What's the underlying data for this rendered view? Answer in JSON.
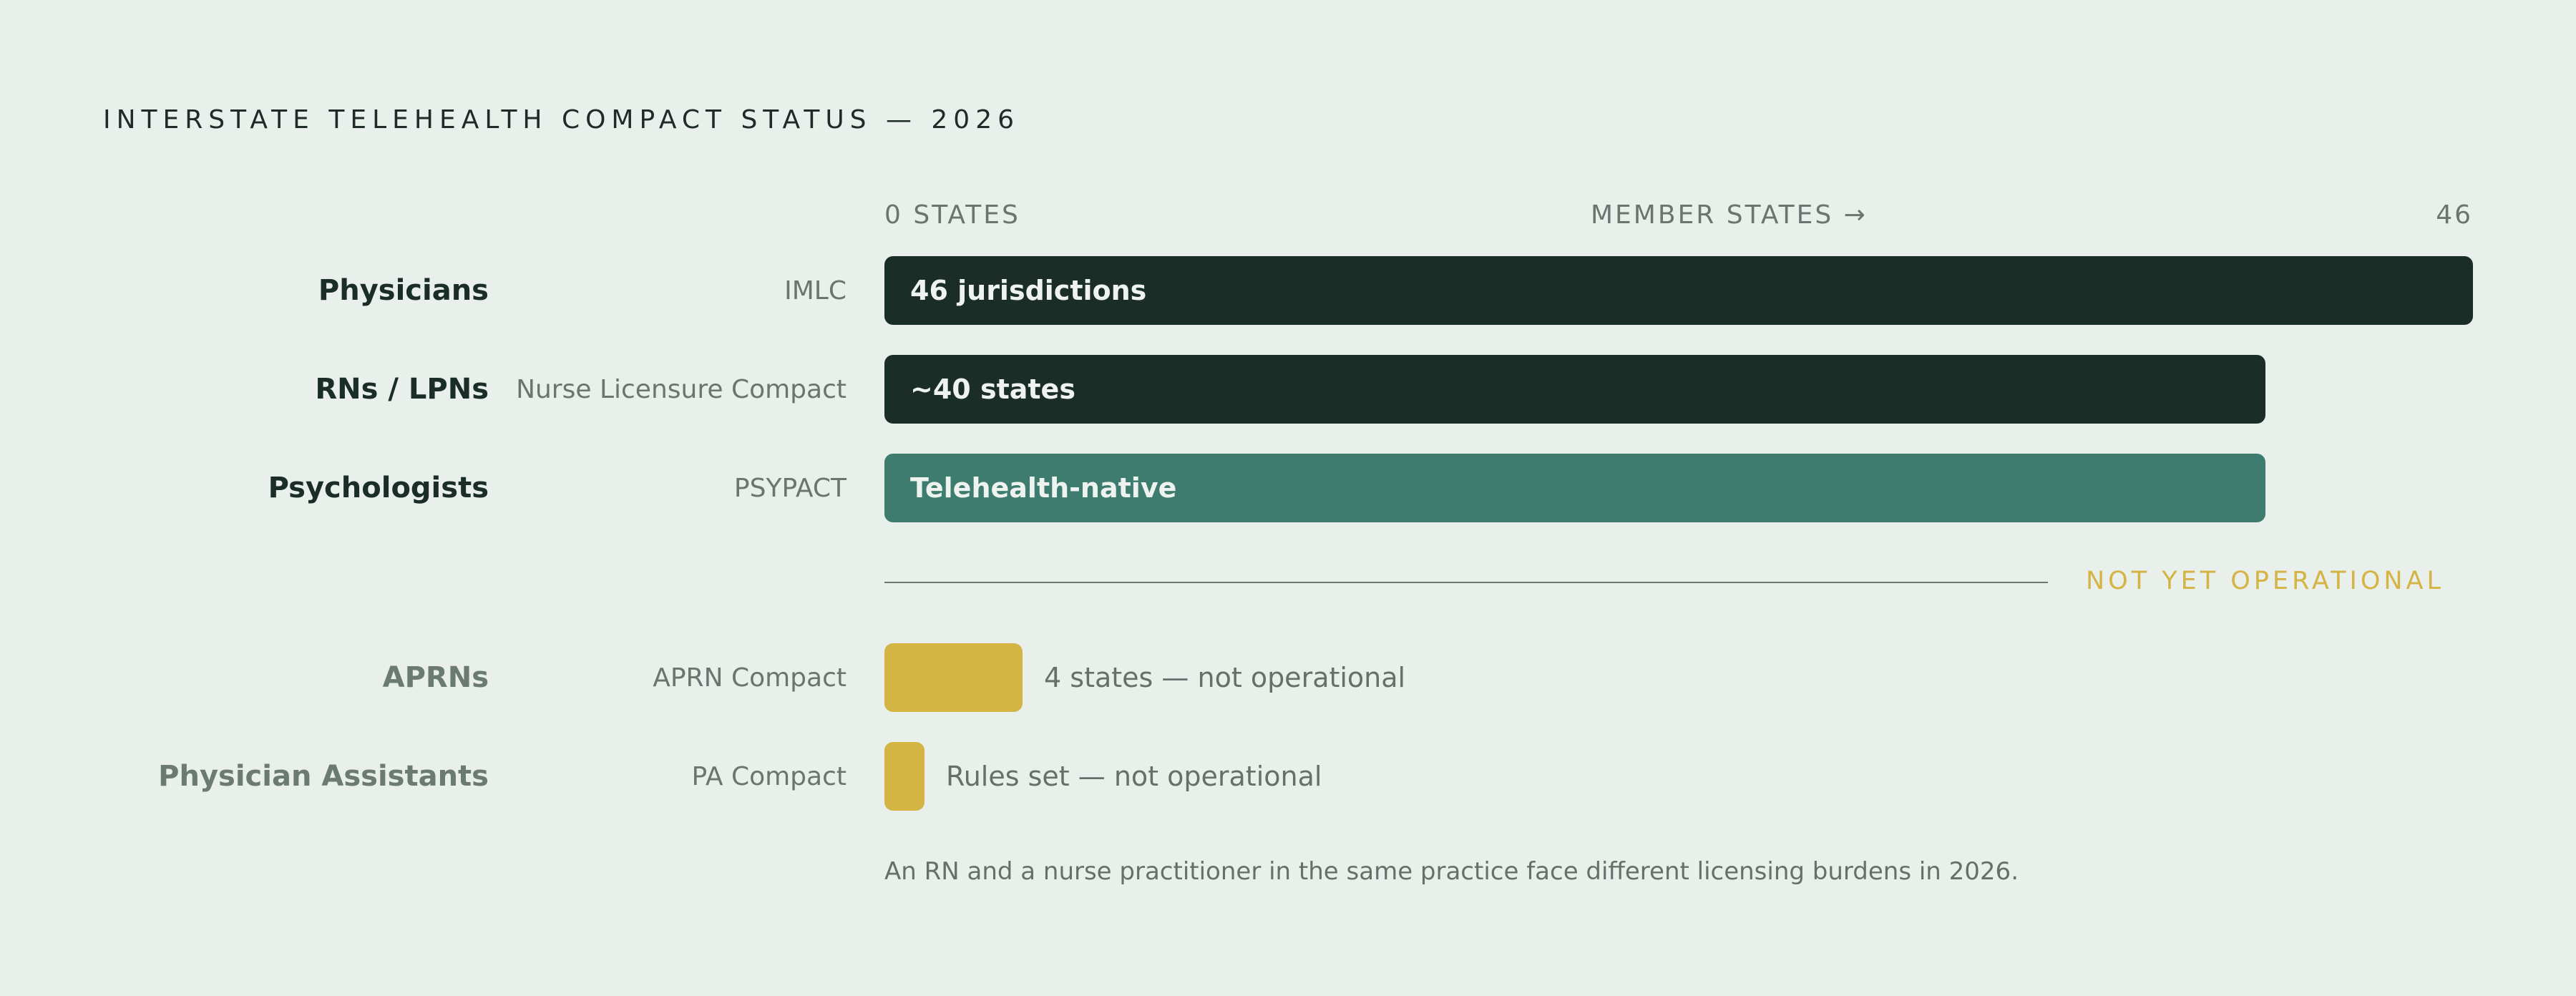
{
  "title": "INTERSTATE TELEHEALTH COMPACT STATUS — 2026",
  "axis": {
    "left": "0 STATES",
    "middle": "MEMBER STATES →",
    "right": "46"
  },
  "colors": {
    "background": "#e9efea",
    "operational_dark": "#1a2d26",
    "operational_teal": "#3d7c6e",
    "not_operational": "#d4b444"
  },
  "divider_label": "NOT YET OPERATIONAL",
  "footnote": "An RN and a nurse practitioner in the same practice face different licensing burdens in 2026.",
  "chart_data": {
    "type": "bar",
    "orientation": "horizontal",
    "xlim": [
      0,
      46
    ],
    "categories": [
      "Physicians",
      "RNs / LPNs",
      "Psychologists",
      "APRNs",
      "Physician Assistants"
    ],
    "compacts": [
      "IMLC",
      "Nurse Licensure Compact",
      "PSYPACT",
      "APRN Compact",
      "PA Compact"
    ],
    "values": [
      46,
      40,
      40,
      4,
      1
    ],
    "bar_labels": [
      "46 jurisdictions",
      "~40 states",
      "Telehealth-native",
      "4 states — not operational",
      "Rules set — not operational"
    ],
    "status": [
      "operational",
      "operational",
      "operational",
      "not operational",
      "not operational"
    ],
    "bar_colors": [
      "#1a2d26",
      "#1a2d26",
      "#3d7c6e",
      "#d4b444",
      "#d4b444"
    ]
  }
}
